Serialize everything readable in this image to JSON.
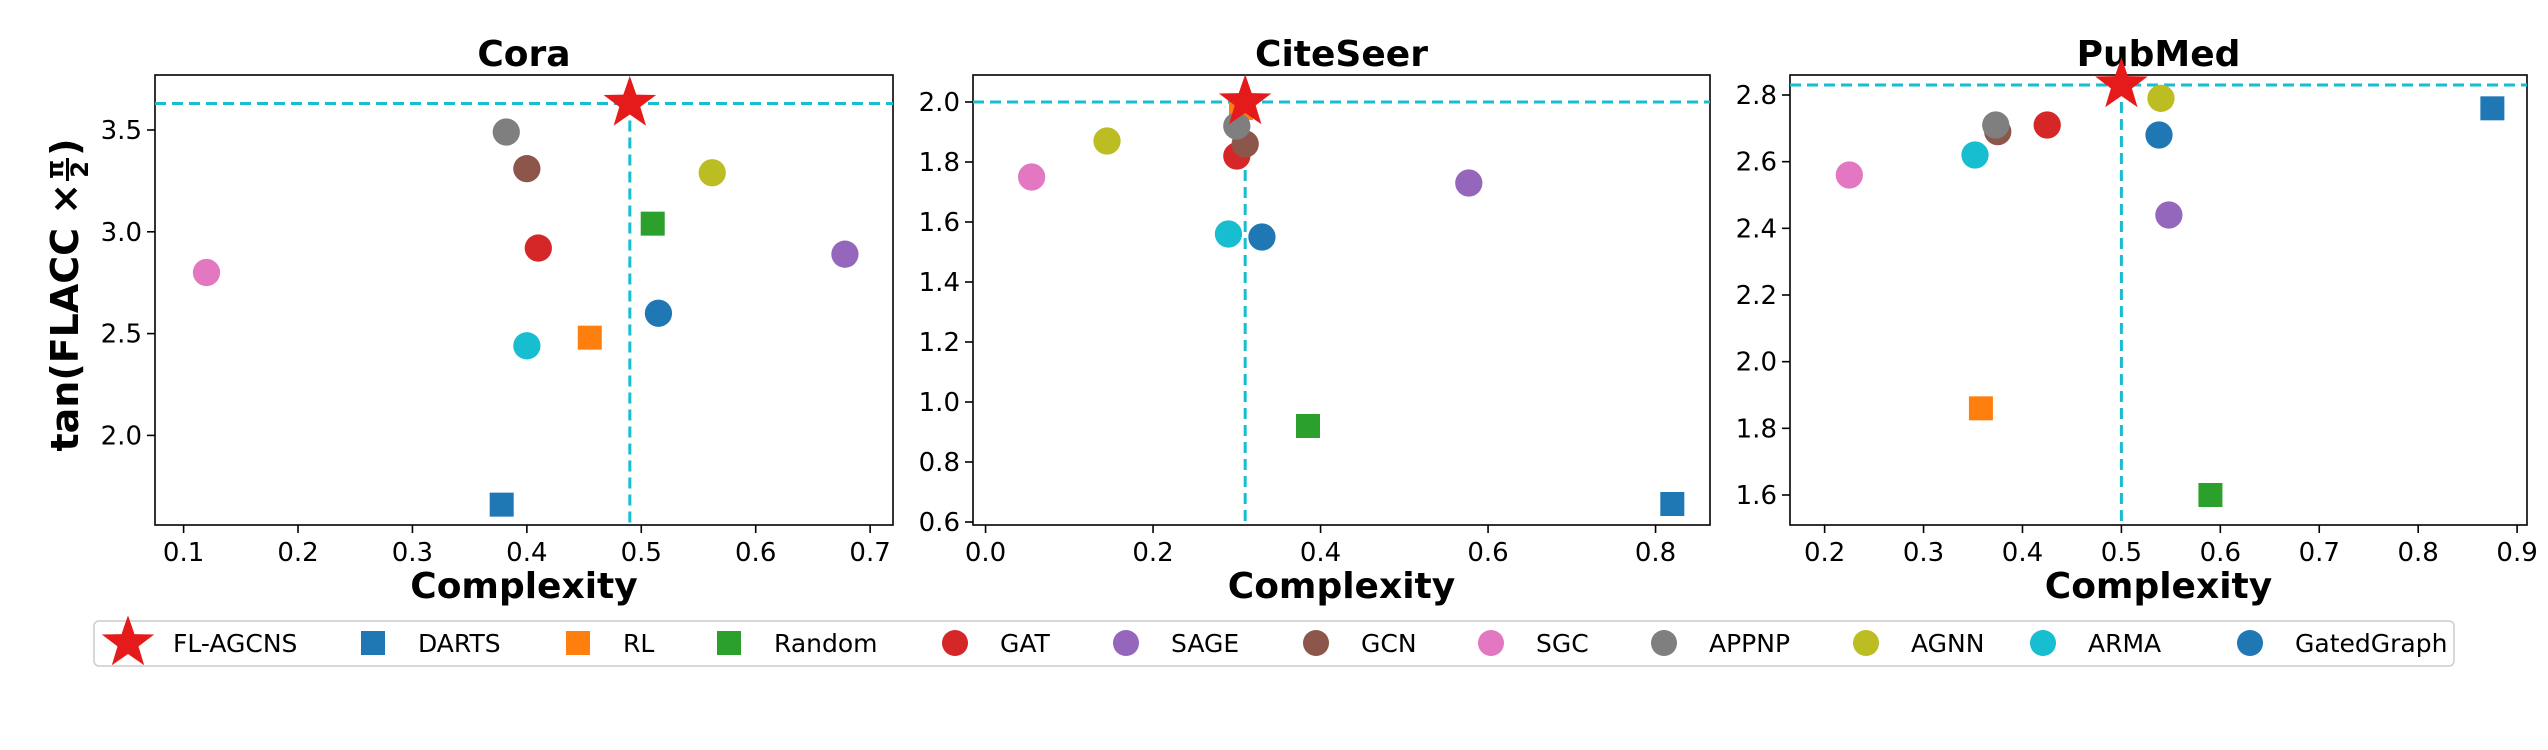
{
  "figure": {
    "ylabel_prefix": "tan(FLACC ×",
    "ylabel_num": "π",
    "ylabel_den": "2",
    "ylabel_suffix": ")"
  },
  "styles": {
    "FL-AGCNS": {
      "color": "#e51b1b",
      "marker": "star"
    },
    "DARTS": {
      "color": "#1f77b4",
      "marker": "square"
    },
    "RL": {
      "color": "#ff7f0e",
      "marker": "square"
    },
    "Random": {
      "color": "#2ca02c",
      "marker": "square"
    },
    "GAT": {
      "color": "#d62728",
      "marker": "circle"
    },
    "SAGE": {
      "color": "#9467bd",
      "marker": "circle"
    },
    "GCN": {
      "color": "#8c564b",
      "marker": "circle"
    },
    "SGC": {
      "color": "#e377c2",
      "marker": "circle"
    },
    "APPNP": {
      "color": "#7f7f7f",
      "marker": "circle"
    },
    "AGNN": {
      "color": "#bcbd22",
      "marker": "circle"
    },
    "ARMA": {
      "color": "#17becf",
      "marker": "circle"
    },
    "GatedGraph": {
      "color": "#1f77b4",
      "marker": "circle"
    }
  },
  "ref_line_color": "#17becf",
  "legend": [
    "FL-AGCNS",
    "DARTS",
    "RL",
    "Random",
    "GAT",
    "SAGE",
    "GCN",
    "SGC",
    "APPNP",
    "AGNN",
    "ARMA",
    "GatedGraph"
  ],
  "chart_data": [
    {
      "type": "scatter",
      "title": "Cora",
      "xlabel": "Complexity",
      "xlim": [
        0.075,
        0.72
      ],
      "ylim": [
        1.56,
        3.77
      ],
      "xticks": [
        0.1,
        0.2,
        0.3,
        0.4,
        0.5,
        0.6,
        0.7
      ],
      "xtick_labels": [
        "0.1",
        "0.2",
        "0.3",
        "0.4",
        "0.5",
        "0.6",
        "0.7"
      ],
      "yticks": [
        2.0,
        2.5,
        3.0,
        3.5
      ],
      "ytick_labels": [
        "2.0",
        "2.5",
        "3.0",
        "3.5"
      ],
      "ref_x": 0.49,
      "ref_y": 3.63,
      "points": [
        {
          "name": "FL-AGCNS",
          "x": 0.49,
          "y": 3.63
        },
        {
          "name": "DARTS",
          "x": 0.378,
          "y": 1.66
        },
        {
          "name": "RL",
          "x": 0.455,
          "y": 2.48
        },
        {
          "name": "Random",
          "x": 0.51,
          "y": 3.04
        },
        {
          "name": "GAT",
          "x": 0.41,
          "y": 2.92
        },
        {
          "name": "SAGE",
          "x": 0.678,
          "y": 2.89
        },
        {
          "name": "GCN",
          "x": 0.4,
          "y": 3.31
        },
        {
          "name": "SGC",
          "x": 0.12,
          "y": 2.8
        },
        {
          "name": "APPNP",
          "x": 0.382,
          "y": 3.49
        },
        {
          "name": "AGNN",
          "x": 0.562,
          "y": 3.29
        },
        {
          "name": "ARMA",
          "x": 0.4,
          "y": 2.44
        },
        {
          "name": "GatedGraph",
          "x": 0.515,
          "y": 2.6
        }
      ]
    },
    {
      "type": "scatter",
      "title": "CiteSeer",
      "xlabel": "Complexity",
      "xlim": [
        -0.015,
        0.865
      ],
      "ylim": [
        0.59,
        2.09
      ],
      "xticks": [
        0.0,
        0.2,
        0.4,
        0.6,
        0.8
      ],
      "xtick_labels": [
        "0.0",
        "0.2",
        "0.4",
        "0.6",
        "0.8"
      ],
      "yticks": [
        0.6,
        0.8,
        1.0,
        1.2,
        1.4,
        1.6,
        1.8,
        2.0
      ],
      "ytick_labels": [
        "0.6",
        "0.8",
        "1.0",
        "1.2",
        "1.4",
        "1.6",
        "1.8",
        "2.0"
      ],
      "ref_x": 0.31,
      "ref_y": 2.0,
      "points": [
        {
          "name": "FL-AGCNS",
          "x": 0.31,
          "y": 2.0
        },
        {
          "name": "DARTS",
          "x": 0.82,
          "y": 0.66
        },
        {
          "name": "RL",
          "x": 0.305,
          "y": 1.98
        },
        {
          "name": "Random",
          "x": 0.385,
          "y": 0.92
        },
        {
          "name": "GAT",
          "x": 0.3,
          "y": 1.82
        },
        {
          "name": "SAGE",
          "x": 0.577,
          "y": 1.73
        },
        {
          "name": "GCN",
          "x": 0.31,
          "y": 1.86
        },
        {
          "name": "SGC",
          "x": 0.055,
          "y": 1.75
        },
        {
          "name": "APPNP",
          "x": 0.3,
          "y": 1.92
        },
        {
          "name": "AGNN",
          "x": 0.145,
          "y": 1.87
        },
        {
          "name": "ARMA",
          "x": 0.29,
          "y": 1.56
        },
        {
          "name": "GatedGraph",
          "x": 0.33,
          "y": 1.55
        }
      ]
    },
    {
      "type": "scatter",
      "title": "PubMed",
      "xlabel": "Complexity",
      "xlim": [
        0.165,
        0.91
      ],
      "ylim": [
        1.51,
        2.86
      ],
      "xticks": [
        0.2,
        0.3,
        0.4,
        0.5,
        0.6,
        0.7,
        0.8,
        0.9
      ],
      "xtick_labels": [
        "0.2",
        "0.3",
        "0.4",
        "0.5",
        "0.6",
        "0.7",
        "0.8",
        "0.9"
      ],
      "yticks": [
        1.6,
        1.8,
        2.0,
        2.2,
        2.4,
        2.6,
        2.8
      ],
      "ytick_labels": [
        "1.6",
        "1.8",
        "2.0",
        "2.2",
        "2.4",
        "2.6",
        "2.8"
      ],
      "ref_x": 0.5,
      "ref_y": 2.83,
      "points": [
        {
          "name": "FL-AGCNS",
          "x": 0.5,
          "y": 2.83
        },
        {
          "name": "DARTS",
          "x": 0.875,
          "y": 2.76
        },
        {
          "name": "RL",
          "x": 0.358,
          "y": 1.86
        },
        {
          "name": "Random",
          "x": 0.59,
          "y": 1.6
        },
        {
          "name": "GAT",
          "x": 0.425,
          "y": 2.71
        },
        {
          "name": "SAGE",
          "x": 0.548,
          "y": 2.44
        },
        {
          "name": "GCN",
          "x": 0.375,
          "y": 2.69
        },
        {
          "name": "SGC",
          "x": 0.225,
          "y": 2.56
        },
        {
          "name": "APPNP",
          "x": 0.373,
          "y": 2.71
        },
        {
          "name": "AGNN",
          "x": 0.54,
          "y": 2.79
        },
        {
          "name": "ARMA",
          "x": 0.352,
          "y": 2.62
        },
        {
          "name": "GatedGraph",
          "x": 0.538,
          "y": 2.68
        }
      ]
    }
  ]
}
